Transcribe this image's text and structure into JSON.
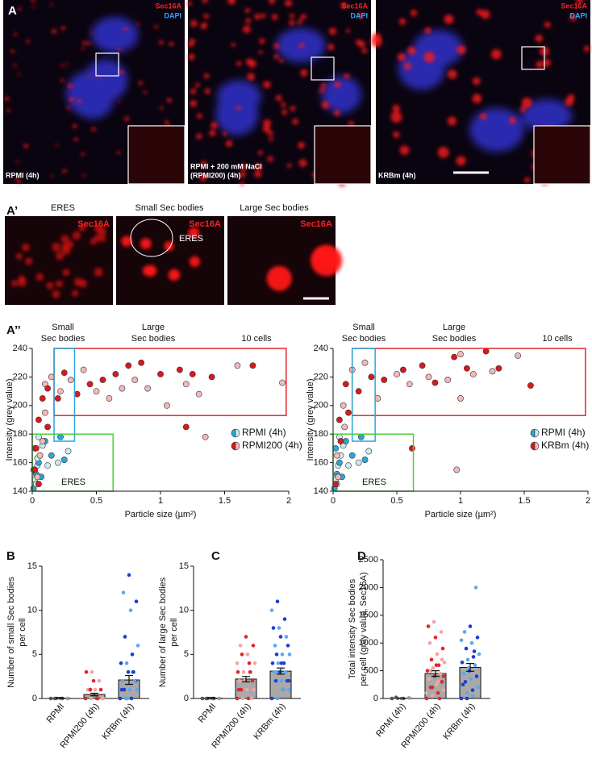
{
  "panel_a": {
    "label": "A",
    "images": [
      {
        "stain1": "Sec16A",
        "stain2": "DAPI",
        "caption": [
          "RPMI (4h)"
        ]
      },
      {
        "stain1": "Sec16A",
        "stain2": "DAPI",
        "caption": [
          "RPMI + 200 mM NaCl",
          "(RPMI200) (4h)"
        ]
      },
      {
        "stain1": "Sec16A",
        "stain2": "DAPI",
        "caption": [
          "KRBm (4h)"
        ]
      }
    ]
  },
  "panel_a_prime": {
    "label": "A’",
    "images": [
      {
        "title": "ERES",
        "stain": "Sec16A"
      },
      {
        "title": "Small Sec bodies",
        "stain": "Sec16A",
        "annotation": "ERES"
      },
      {
        "title": "Large Sec bodies",
        "stain": "Sec16A"
      }
    ]
  },
  "panel_a_double_prime": {
    "label": "A’’"
  },
  "chart_data": [
    {
      "type": "scatter",
      "xlabel": "Particle size (µm²)",
      "ylabel": "Intensity (grey value)",
      "header_labels": [
        [
          "Small",
          "Sec bodies"
        ],
        [
          "Large",
          "Sec bodies"
        ],
        [
          "10 cells"
        ]
      ],
      "xlim": [
        0,
        2
      ],
      "xticks": [
        0,
        0.5,
        1,
        1.5,
        2
      ],
      "ylim": [
        140,
        240
      ],
      "yticks": [
        140,
        160,
        180,
        200,
        220,
        240
      ],
      "regions": [
        {
          "color": "#e0262b",
          "x": [
            0.17,
            1.98
          ],
          "y": [
            193,
            240
          ]
        },
        {
          "color": "#2aa6dd",
          "x": [
            0.17,
            0.33
          ],
          "y": [
            175,
            240
          ]
        },
        {
          "color": "#4ccf3c",
          "x": [
            0,
            0.63
          ],
          "y": [
            140,
            180
          ],
          "label": "ERES"
        }
      ],
      "series": [
        {
          "name": "RPMI (4h)",
          "colors": [
            "#2aa6dd",
            "#cdeaf2"
          ],
          "x": [
            0.01,
            0.02,
            0.03,
            0.04,
            0.05,
            0.06,
            0.02,
            0.08,
            0.1,
            0.05,
            0.15,
            0.2,
            0.25,
            0.28,
            0.22,
            0.03,
            0.07,
            0.12,
            0.01,
            0.04
          ],
          "y": [
            142,
            148,
            152,
            158,
            160,
            165,
            170,
            172,
            175,
            178,
            165,
            160,
            162,
            168,
            178,
            145,
            150,
            158,
            155,
            163
          ]
        },
        {
          "name": "RPMI200 (4h)",
          "colors": [
            "#d7191c",
            "#f4b8b8"
          ],
          "x": [
            0.08,
            0.1,
            0.12,
            0.15,
            0.2,
            0.22,
            0.25,
            0.3,
            0.35,
            0.4,
            0.45,
            0.5,
            0.55,
            0.6,
            0.65,
            0.7,
            0.75,
            0.8,
            0.85,
            0.9,
            1.0,
            1.05,
            1.15,
            1.2,
            1.25,
            1.3,
            1.4,
            1.6,
            1.72,
            1.95,
            1.2,
            1.35,
            0.05,
            0.1,
            0.03,
            0.06,
            0.02,
            0.04,
            0.05,
            0.08,
            0.12
          ],
          "y": [
            205,
            215,
            212,
            220,
            205,
            210,
            223,
            218,
            208,
            225,
            215,
            210,
            218,
            205,
            222,
            212,
            228,
            218,
            230,
            212,
            222,
            200,
            225,
            215,
            222,
            208,
            220,
            228,
            228,
            216,
            185,
            178,
            190,
            195,
            170,
            165,
            155,
            150,
            145,
            175,
            185
          ]
        }
      ]
    },
    {
      "type": "scatter",
      "xlabel": "Particle size (µm²)",
      "ylabel": "Intensity (grey value)",
      "header_labels": [
        [
          "Small",
          "Sec bodies"
        ],
        [
          "Large",
          "Sec bodies"
        ],
        [
          "10 cells"
        ]
      ],
      "xlim": [
        0,
        2
      ],
      "xticks": [
        0,
        0.5,
        1,
        1.5,
        2
      ],
      "ylim": [
        140,
        240
      ],
      "yticks": [
        140,
        160,
        180,
        200,
        220,
        240
      ],
      "regions": [
        {
          "color": "#e0262b",
          "x": [
            0.15,
            1.98
          ],
          "y": [
            193,
            240
          ]
        },
        {
          "color": "#2aa6dd",
          "x": [
            0.15,
            0.33
          ],
          "y": [
            175,
            240
          ]
        },
        {
          "color": "#4ccf3c",
          "x": [
            0,
            0.63
          ],
          "y": [
            140,
            180
          ],
          "label": "ERES"
        }
      ],
      "series": [
        {
          "name": "RPMI (4h)",
          "colors": [
            "#2aa6dd",
            "#cdeaf2"
          ],
          "x": [
            0.01,
            0.02,
            0.03,
            0.04,
            0.05,
            0.06,
            0.02,
            0.08,
            0.1,
            0.05,
            0.15,
            0.2,
            0.25,
            0.28,
            0.22,
            0.03,
            0.07,
            0.12
          ],
          "y": [
            142,
            148,
            152,
            158,
            160,
            165,
            170,
            172,
            175,
            178,
            165,
            160,
            162,
            168,
            178,
            145,
            150,
            158
          ]
        },
        {
          "name": "KRBm (4h)",
          "colors": [
            "#d7191c",
            "#f4b8b8"
          ],
          "x": [
            0.1,
            0.15,
            0.2,
            0.25,
            0.3,
            0.35,
            0.4,
            0.5,
            0.55,
            0.6,
            0.7,
            0.75,
            0.8,
            0.9,
            0.95,
            1.0,
            1.05,
            1.1,
            1.2,
            1.25,
            1.3,
            1.45,
            1.55,
            1.0,
            0.62,
            0.97,
            0.05,
            0.08,
            0.12,
            0.03,
            0.06,
            0.04,
            0.02,
            0.09
          ],
          "y": [
            215,
            225,
            210,
            230,
            220,
            205,
            218,
            222,
            225,
            215,
            228,
            220,
            216,
            218,
            234,
            236,
            226,
            222,
            238,
            224,
            226,
            235,
            214,
            205,
            170,
            155,
            190,
            200,
            195,
            165,
            175,
            150,
            145,
            185
          ]
        }
      ]
    },
    {
      "type": "bar",
      "panel": "B",
      "ylabel": [
        "Number of small Sec bodies",
        "per cell"
      ],
      "categories": [
        "RPMI",
        "RPMI200 (4h)",
        "KRBm (4h)"
      ],
      "ylim": [
        0,
        15
      ],
      "yticks": [
        0,
        5,
        10,
        15
      ],
      "values": [
        0.05,
        0.45,
        2.1
      ],
      "errors": [
        0.05,
        0.15,
        0.5
      ],
      "point_colors": [
        [
          "#555555",
          "#999999"
        ],
        [
          "#e0262b",
          "#f4a3a3"
        ],
        [
          "#1a3fd6",
          "#5aa9f0"
        ]
      ],
      "points": [
        [
          0,
          0,
          0,
          0,
          0,
          0
        ],
        [
          0,
          0,
          0,
          0,
          1,
          1,
          1,
          1,
          2,
          2,
          3,
          3,
          0,
          0,
          1
        ],
        [
          0,
          0,
          0,
          1,
          1,
          1,
          2,
          2,
          3,
          3,
          4,
          4,
          5,
          6,
          7,
          10,
          11,
          12,
          14,
          2,
          1,
          0,
          3
        ]
      ]
    },
    {
      "type": "bar",
      "panel": "C",
      "ylabel": [
        "Number of large Sec bodies",
        "per cell"
      ],
      "categories": [
        "RPMI",
        "RPMI200 (4h)",
        "KRBm (4h)"
      ],
      "ylim": [
        0,
        15
      ],
      "yticks": [
        0,
        5,
        10,
        15
      ],
      "values": [
        0.05,
        2.2,
        3.1
      ],
      "errors": [
        0.05,
        0.3,
        0.35
      ],
      "point_colors": [
        [
          "#555555",
          "#999999"
        ],
        [
          "#e0262b",
          "#f4a3a3"
        ],
        [
          "#1a3fd6",
          "#5aa9f0"
        ]
      ],
      "points": [
        [
          0,
          0,
          0,
          0,
          0,
          0
        ],
        [
          0,
          0,
          0,
          1,
          1,
          1,
          2,
          2,
          2,
          3,
          3,
          3,
          4,
          4,
          5,
          5,
          6,
          6,
          7,
          0,
          1,
          2,
          3,
          4
        ],
        [
          0,
          0,
          1,
          1,
          2,
          2,
          2,
          3,
          3,
          3,
          4,
          4,
          4,
          5,
          5,
          5,
          6,
          6,
          7,
          7,
          8,
          8,
          9,
          10,
          11,
          1,
          2,
          3,
          4
        ]
      ]
    },
    {
      "type": "bar",
      "panel": "D",
      "ylabel": [
        "Total intensity Sec bodies",
        "per cell (grey value, Sec16A)"
      ],
      "categories": [
        "RPMI (4h)",
        "RPMI200 (4h)",
        "KRBm (4h)"
      ],
      "ylim": [
        0,
        2500
      ],
      "yticks": [
        0,
        500,
        1000,
        1500,
        2000,
        2500
      ],
      "values": [
        5,
        450,
        560
      ],
      "errors": [
        3,
        50,
        70
      ],
      "point_colors": [
        [
          "#555555",
          "#999999"
        ],
        [
          "#e0262b",
          "#f4a3a3"
        ],
        [
          "#1a3fd6",
          "#5aa9f0"
        ]
      ],
      "points": [
        [
          0,
          0,
          0,
          10,
          20,
          0
        ],
        [
          0,
          50,
          100,
          150,
          200,
          250,
          300,
          350,
          400,
          450,
          500,
          550,
          600,
          650,
          700,
          800,
          900,
          1000,
          1100,
          1200,
          1300,
          1380,
          0,
          100,
          200,
          300,
          400,
          500,
          600,
          700
        ],
        [
          0,
          100,
          150,
          200,
          300,
          350,
          400,
          450,
          500,
          600,
          650,
          700,
          750,
          800,
          900,
          1000,
          1100,
          1200,
          1300,
          2000,
          250,
          550,
          850,
          1050,
          0,
          50
        ]
      ]
    }
  ]
}
